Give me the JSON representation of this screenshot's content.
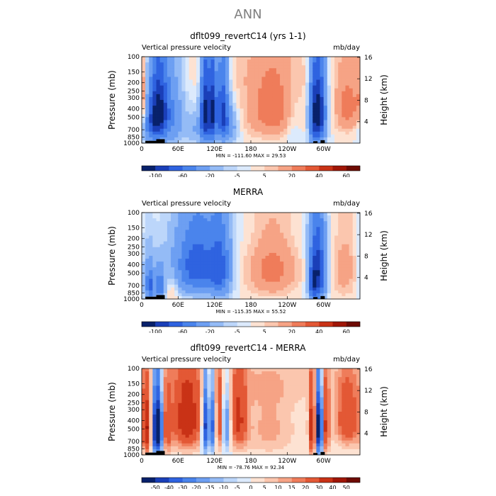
{
  "page": {
    "title": "ANN"
  },
  "colors": {
    "scale": [
      "#08216b",
      "#1a3fb8",
      "#2f63e0",
      "#4a84ec",
      "#6d9ff2",
      "#94bbf6",
      "#bcd6fa",
      "#dceafc",
      "#fde2d2",
      "#fbc6ae",
      "#f6a385",
      "#ef7c5a",
      "#e35835",
      "#c93216",
      "#a01607",
      "#6e0b03"
    ],
    "land": "#000000"
  },
  "panels": [
    {
      "title": "dflt099_revertC14 (yrs 1-1)",
      "left_label": "Vertical pressure velocity",
      "right_label": "mb/day",
      "stats": "MIN = -111.60   MAX =  29.53",
      "colorbar_labels": [
        "-100",
        "-60",
        "-20",
        "-5",
        "5",
        "20",
        "40",
        "60"
      ]
    },
    {
      "title": "MERRA",
      "left_label": "Vertical pressure velocity",
      "right_label": "mb/day",
      "stats": "MIN = -115.35   MAX =  55.52",
      "colorbar_labels": [
        "-100",
        "-60",
        "-20",
        "-5",
        "5",
        "20",
        "40",
        "60"
      ]
    },
    {
      "title": "dflt099_revertC14 - MERRA",
      "left_label": "Vertical pressure velocity",
      "right_label": "mb/day",
      "stats": "MIN = -78.76   MAX =  92.34",
      "colorbar_labels": [
        "-50",
        "-40",
        "-30",
        "-20",
        "-15",
        "-10",
        "-5",
        "0",
        "5",
        "10",
        "15",
        "20",
        "30",
        "40",
        "50"
      ]
    }
  ],
  "chart_data": [
    {
      "type": "heatmap",
      "title": "dflt099_revertC14 (yrs 1-1)",
      "xlabel": "",
      "ylabel": "Pressure (mb)",
      "y2label": "Height (km)",
      "xticks": [
        "0",
        "60E",
        "120E",
        "180",
        "120W",
        "60W"
      ],
      "yticks": [
        "100",
        "150",
        "200",
        "250",
        "300",
        "400",
        "500",
        "700",
        "850",
        "1000"
      ],
      "y2ticks": [
        "4",
        "8",
        "12",
        "16"
      ],
      "ylim": [
        1000,
        100
      ],
      "value_min": -111.6,
      "value_max": 29.53,
      "levels": [
        -120,
        -100,
        -80,
        -60,
        -40,
        -20,
        -10,
        -5,
        0,
        5,
        10,
        20,
        30,
        40,
        50,
        60,
        70
      ],
      "blobs": [
        {
          "lon": 28,
          "p": 420,
          "sx": 11,
          "sp": 300,
          "amp": -95
        },
        {
          "lon": 15,
          "p": 600,
          "sx": 10,
          "sp": 250,
          "amp": -40
        },
        {
          "lon": 2,
          "p": 350,
          "sx": 6,
          "sp": 200,
          "amp": 20
        },
        {
          "lon": 50,
          "p": 500,
          "sx": 14,
          "sp": 350,
          "amp": -35
        },
        {
          "lon": 88,
          "p": 700,
          "sx": 10,
          "sp": 200,
          "amp": -20
        },
        {
          "lon": 104,
          "p": 450,
          "sx": 5,
          "sp": 330,
          "amp": -100
        },
        {
          "lon": 116,
          "p": 450,
          "sx": 5,
          "sp": 330,
          "amp": -100
        },
        {
          "lon": 133,
          "p": 420,
          "sx": 7,
          "sp": 300,
          "amp": -80
        },
        {
          "lon": 145,
          "p": 650,
          "sx": 10,
          "sp": 200,
          "amp": -30
        },
        {
          "lon": 215,
          "p": 420,
          "sx": 30,
          "sp": 270,
          "amp": 28
        },
        {
          "lon": 250,
          "p": 600,
          "sx": 10,
          "sp": 300,
          "amp": -10
        },
        {
          "lon": 292,
          "p": 450,
          "sx": 8,
          "sp": 330,
          "amp": -110
        },
        {
          "lon": 282,
          "p": 500,
          "sx": 5,
          "sp": 350,
          "amp": -40
        },
        {
          "lon": 340,
          "p": 380,
          "sx": 15,
          "sp": 220,
          "amp": 25
        },
        {
          "lon": 180,
          "p": 150,
          "sx": 120,
          "sp": 80,
          "amp": 4
        }
      ],
      "surface": [
        {
          "lon0": 6,
          "lon1": 24,
          "p": 940
        },
        {
          "lon0": 24,
          "lon1": 38,
          "p": 900
        },
        {
          "lon0": 283,
          "lon1": 290,
          "p": 950
        },
        {
          "lon0": 295,
          "lon1": 302,
          "p": 925
        }
      ]
    },
    {
      "type": "heatmap",
      "title": "MERRA",
      "xlabel": "",
      "ylabel": "Pressure (mb)",
      "y2label": "Height (km)",
      "xticks": [
        "0",
        "60E",
        "120E",
        "180",
        "120W",
        "60W"
      ],
      "yticks": [
        "100",
        "150",
        "200",
        "250",
        "300",
        "400",
        "500",
        "700",
        "850",
        "1000"
      ],
      "y2ticks": [
        "4",
        "8",
        "12",
        "16"
      ],
      "ylim": [
        1000,
        100
      ],
      "value_min": -115.35,
      "value_max": 55.52,
      "levels": [
        -120,
        -100,
        -80,
        -60,
        -40,
        -20,
        -10,
        -5,
        0,
        5,
        10,
        20,
        30,
        40,
        50,
        60,
        70
      ],
      "blobs": [
        {
          "lon": 14,
          "p": 700,
          "sx": 6,
          "sp": 220,
          "amp": -60
        },
        {
          "lon": 30,
          "p": 700,
          "sx": 5,
          "sp": 200,
          "amp": -55
        },
        {
          "lon": 22,
          "p": 620,
          "sx": 3,
          "sp": 150,
          "amp": 15
        },
        {
          "lon": 8,
          "p": 450,
          "sx": 10,
          "sp": 250,
          "amp": -10
        },
        {
          "lon": 52,
          "p": 750,
          "sx": 6,
          "sp": 200,
          "amp": 12
        },
        {
          "lon": 95,
          "p": 420,
          "sx": 22,
          "sp": 280,
          "amp": -55
        },
        {
          "lon": 130,
          "p": 460,
          "sx": 12,
          "sp": 300,
          "amp": -60
        },
        {
          "lon": 75,
          "p": 420,
          "sx": 25,
          "sp": 260,
          "amp": -25
        },
        {
          "lon": 215,
          "p": 450,
          "sx": 28,
          "sp": 280,
          "amp": 25
        },
        {
          "lon": 290,
          "p": 500,
          "sx": 9,
          "sp": 340,
          "amp": -100
        },
        {
          "lon": 282,
          "p": 700,
          "sx": 4,
          "sp": 220,
          "amp": -40
        },
        {
          "lon": 335,
          "p": 450,
          "sx": 15,
          "sp": 300,
          "amp": 15
        },
        {
          "lon": 180,
          "p": 180,
          "sx": 120,
          "sp": 100,
          "amp": -3
        }
      ],
      "surface": [
        {
          "lon0": 6,
          "lon1": 24,
          "p": 940
        },
        {
          "lon0": 24,
          "lon1": 38,
          "p": 900
        },
        {
          "lon0": 283,
          "lon1": 290,
          "p": 950
        },
        {
          "lon0": 295,
          "lon1": 302,
          "p": 925
        }
      ]
    },
    {
      "type": "heatmap",
      "title": "dflt099_revertC14 - MERRA",
      "xlabel": "",
      "ylabel": "Pressure (mb)",
      "y2label": "Height (km)",
      "xticks": [
        "0",
        "60E",
        "120E",
        "180",
        "120W",
        "60W"
      ],
      "yticks": [
        "100",
        "150",
        "200",
        "250",
        "300",
        "400",
        "500",
        "700",
        "850",
        "1000"
      ],
      "y2ticks": [
        "4",
        "8",
        "12",
        "16"
      ],
      "ylim": [
        1000,
        100
      ],
      "value_min": -78.76,
      "value_max": 92.34,
      "levels": [
        -60,
        -50,
        -40,
        -30,
        -20,
        -15,
        -10,
        -5,
        0,
        5,
        10,
        15,
        20,
        30,
        40,
        50,
        60
      ],
      "blobs": [
        {
          "lon": 10,
          "p": 500,
          "sx": 6,
          "sp": 300,
          "amp": 40
        },
        {
          "lon": 26,
          "p": 500,
          "sx": 7,
          "sp": 300,
          "amp": -70
        },
        {
          "lon": 40,
          "p": 500,
          "sx": 6,
          "sp": 300,
          "amp": 30
        },
        {
          "lon": 75,
          "p": 400,
          "sx": 18,
          "sp": 280,
          "amp": 40
        },
        {
          "lon": 105,
          "p": 450,
          "sx": 4,
          "sp": 300,
          "amp": -50
        },
        {
          "lon": 118,
          "p": 450,
          "sx": 4,
          "sp": 300,
          "amp": -40
        },
        {
          "lon": 126,
          "p": 420,
          "sx": 5,
          "sp": 300,
          "amp": 30
        },
        {
          "lon": 140,
          "p": 450,
          "sx": 5,
          "sp": 300,
          "amp": -25
        },
        {
          "lon": 160,
          "p": 400,
          "sx": 10,
          "sp": 280,
          "amp": 30
        },
        {
          "lon": 210,
          "p": 500,
          "sx": 30,
          "sp": 300,
          "amp": 12
        },
        {
          "lon": 293,
          "p": 480,
          "sx": 5,
          "sp": 300,
          "amp": -70
        },
        {
          "lon": 282,
          "p": 500,
          "sx": 4,
          "sp": 300,
          "amp": 50
        },
        {
          "lon": 302,
          "p": 480,
          "sx": 5,
          "sp": 300,
          "amp": 40
        },
        {
          "lon": 340,
          "p": 400,
          "sx": 15,
          "sp": 250,
          "amp": 30
        },
        {
          "lon": 180,
          "p": 150,
          "sx": 150,
          "sp": 80,
          "amp": 6
        }
      ],
      "surface": [
        {
          "lon0": 6,
          "lon1": 24,
          "p": 940
        },
        {
          "lon0": 24,
          "lon1": 38,
          "p": 900
        },
        {
          "lon0": 283,
          "lon1": 290,
          "p": 950
        },
        {
          "lon0": 295,
          "lon1": 302,
          "p": 925
        }
      ]
    }
  ]
}
